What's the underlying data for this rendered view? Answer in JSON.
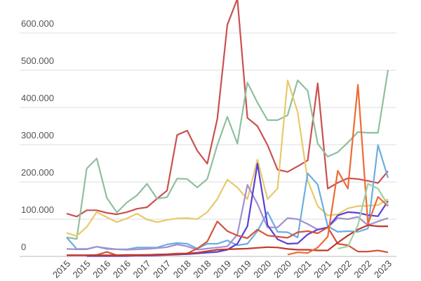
{
  "chart_data": {
    "type": "line",
    "title": "",
    "xlabel": "",
    "ylabel": "",
    "ylim": [
      0,
      690000
    ],
    "grid": true,
    "legend": "none",
    "yticks": [
      "0",
      "100.000",
      "200.000",
      "300.000",
      "400.000",
      "500.000",
      "600.000"
    ],
    "ytick_values": [
      0,
      100000,
      200000,
      300000,
      400000,
      500000,
      600000
    ],
    "xtick_labels": [
      "2015",
      "2015",
      "2016",
      "2016",
      "2017",
      "2017",
      "2018",
      "2018",
      "2019",
      "2019",
      "2020",
      "2020",
      "2021",
      "2021",
      "2022",
      "2022",
      "2023"
    ],
    "point_count": 33,
    "series": [
      {
        "color": "#c9514f",
        "values": [
          115000,
          107000,
          124000,
          124000,
          117000,
          113000,
          119000,
          128000,
          132000,
          155000,
          177000,
          326000,
          338000,
          284000,
          249000,
          369000,
          622000,
          692000,
          372000,
          350000,
          299000,
          233000,
          227000,
          242000,
          258000,
          465000,
          182000,
          198000,
          210000,
          208000,
          203000,
          197000,
          229000
        ]
      },
      {
        "color": "#8fbf9f",
        "values": [
          51000,
          47000,
          236000,
          263000,
          157000,
          118000,
          145000,
          164000,
          195000,
          155000,
          159000,
          209000,
          208000,
          185000,
          208000,
          299000,
          375000,
          303000,
          467000,
          413000,
          366000,
          366000,
          379000,
          473000,
          445000,
          303000,
          268000,
          280000,
          306000,
          334000,
          332000,
          332000,
          501000
        ]
      },
      {
        "color": "#e8c96a",
        "values": [
          63000,
          55000,
          79000,
          119000,
          105000,
          92000,
          102000,
          115000,
          99000,
          92000,
          98000,
          102000,
          103000,
          100000,
          119000,
          154000,
          206000,
          185000,
          154000,
          260000,
          154000,
          182000,
          473000,
          388000,
          204000,
          135000,
          110000,
          113000,
          129000,
          135000,
          136000,
          138000,
          154000
        ]
      },
      {
        "color": "#6aaee0",
        "values": [
          51000,
          20000,
          20000,
          26000,
          20000,
          19000,
          19000,
          24000,
          24000,
          24000,
          32000,
          36000,
          34000,
          21000,
          34000,
          34000,
          43000,
          30000,
          34000,
          68000,
          119000,
          66000,
          65000,
          51000,
          223000,
          193000,
          81000,
          66000,
          68000,
          66000,
          75000,
          299000,
          211000
        ]
      },
      {
        "color": "#a390cf",
        "values": [
          20000,
          19000,
          19000,
          26000,
          22000,
          19000,
          18000,
          19000,
          20000,
          22000,
          25000,
          32000,
          27000,
          18000,
          21000,
          24000,
          27000,
          59000,
          192000,
          141000,
          78000,
          78000,
          103000,
          100000,
          87000,
          72000,
          78000,
          103000,
          100000,
          106000,
          84000,
          94000,
          103000
        ]
      },
      {
        "color": "#5b3fd6",
        "values": [
          null,
          null,
          1000,
          1000,
          1000,
          1000,
          1000,
          2000,
          2000,
          3000,
          4000,
          5000,
          6000,
          8000,
          10000,
          12000,
          18000,
          34000,
          81000,
          249000,
          84000,
          46000,
          34000,
          35000,
          59000,
          72000,
          78000,
          110000,
          119000,
          117000,
          111000,
          108000,
          149000
        ]
      },
      {
        "color": "#d5533a",
        "values": [
          3000,
          3000,
          3000,
          4000,
          12000,
          3000,
          3000,
          3000,
          4000,
          5000,
          6000,
          8000,
          8000,
          21000,
          40000,
          94000,
          68000,
          56000,
          49000,
          72000,
          56000,
          53000,
          50000,
          65000,
          68000,
          62000,
          78000,
          34000,
          30000,
          13000,
          13000,
          16000,
          11000
        ]
      },
      {
        "color": "#c0392b",
        "values": [
          3000,
          3000,
          3000,
          3000,
          3000,
          3000,
          4000,
          4000,
          4000,
          5000,
          5000,
          6000,
          8000,
          10000,
          14000,
          18000,
          19000,
          20000,
          21000,
          23000,
          25000,
          24000,
          20000,
          18000,
          18000,
          16000,
          16000,
          37000,
          56000,
          72000,
          84000,
          81000,
          81000
        ]
      },
      {
        "color": "#ee6b35",
        "values": [
          null,
          null,
          null,
          null,
          null,
          null,
          null,
          null,
          null,
          null,
          null,
          null,
          null,
          null,
          null,
          null,
          null,
          null,
          null,
          null,
          null,
          null,
          5000,
          11000,
          9000,
          24000,
          53000,
          230000,
          182000,
          461000,
          87000,
          160000,
          135000
        ]
      },
      {
        "color": "#9fd0a0",
        "values": [
          null,
          null,
          null,
          null,
          null,
          null,
          null,
          null,
          null,
          null,
          null,
          null,
          null,
          null,
          null,
          null,
          null,
          null,
          null,
          null,
          null,
          null,
          null,
          null,
          null,
          null,
          null,
          21000,
          27000,
          84000,
          195000,
          182000,
          138000
        ]
      }
    ]
  }
}
